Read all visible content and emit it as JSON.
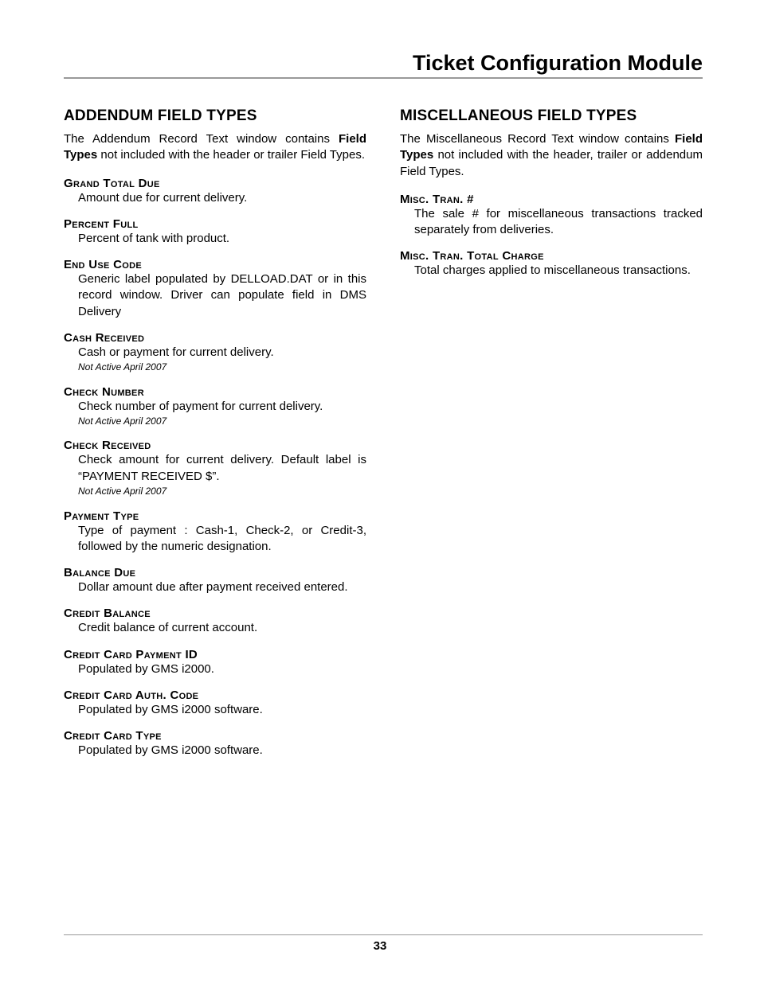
{
  "page_title": "Ticket Configuration Module",
  "page_number": "33",
  "left": {
    "heading": "ADDENDUM FIELD TYPES",
    "intro_before": "The Addendum Record Text window contains ",
    "intro_bold": "Field Types",
    "intro_after": " not included with the header or trailer Field Types.",
    "fields": [
      {
        "name": "Grand Total Due",
        "desc": "Amount due for current delivery."
      },
      {
        "name": "Percent Full",
        "desc": "Percent of tank with product."
      },
      {
        "name": "End Use Code",
        "desc": "Generic label populated by DELLOAD.DAT or in this record window. Driver can populate field in DMS Delivery"
      },
      {
        "name": "Cash Received",
        "desc": "Cash or payment for current delivery.",
        "note": "Not Active April 2007"
      },
      {
        "name": "Check Number",
        "desc": "Check number of payment for current delivery.",
        "note": "Not Active April 2007"
      },
      {
        "name": "Check Received",
        "desc": "Check amount for current delivery. Default label is “PAYMENT RECEIVED $”.",
        "note": "Not Active April 2007"
      },
      {
        "name": "Payment Type",
        "desc": "Type of payment : Cash-1, Check-2, or Credit-3, followed by the numeric designation."
      },
      {
        "name": "Balance Due",
        "desc": "Dollar amount due after payment received entered."
      },
      {
        "name": "Credit Balance",
        "desc": "Credit balance of current account."
      },
      {
        "name": "Credit Card Payment ID",
        "desc": "Populated by GMS i2000."
      },
      {
        "name": "Credit Card Auth. Code",
        "desc": "Populated by GMS i2000 software."
      },
      {
        "name": "Credit Card Type",
        "desc": "Populated by GMS i2000 software."
      }
    ]
  },
  "right": {
    "heading": "MISCELLANEOUS FIELD TYPES",
    "intro_before": "The Miscellaneous Record Text window contains ",
    "intro_bold": "Field Types",
    "intro_after": " not included with the header, trailer or addendum Field Types.",
    "fields": [
      {
        "name": "Misc. Tran. #",
        "desc": "The sale # for miscellaneous transactions tracked separately from deliveries."
      },
      {
        "name": "Misc. Tran. Total Charge",
        "desc": "Total charges applied to miscellaneous transactions."
      }
    ]
  }
}
